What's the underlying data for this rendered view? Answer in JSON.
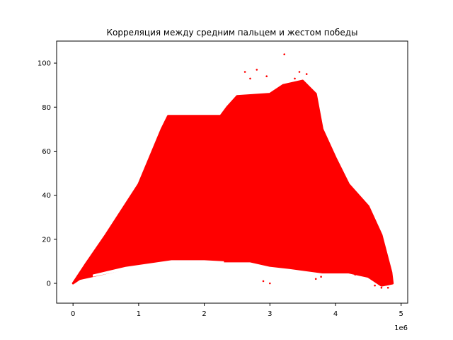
{
  "chart_data": {
    "type": "scatter",
    "title": "Корреляция между средним пальцем и жестом победы",
    "xlabel": "",
    "ylabel": "",
    "x_offset_label": "1e6",
    "xlim": [
      -250000,
      5100000
    ],
    "ylim": [
      -9,
      110
    ],
    "x_ticks": [
      0,
      1000000,
      2000000,
      3000000,
      4000000,
      5000000
    ],
    "x_tick_labels": [
      "0",
      "1",
      "2",
      "3",
      "4",
      "5"
    ],
    "y_ticks": [
      0,
      20,
      40,
      60,
      80,
      100
    ],
    "y_tick_labels": [
      "0",
      "20",
      "40",
      "60",
      "80",
      "100"
    ],
    "marker_color": "#ff0000",
    "grid": false,
    "legend": "none",
    "series": [
      {
        "main_region_upper": [
          [
            0,
            0
          ],
          [
            200000,
            9
          ],
          [
            500000,
            22
          ],
          [
            1000000,
            45
          ],
          [
            1350000,
            70
          ],
          [
            1450000,
            76
          ],
          [
            2250000,
            76
          ],
          [
            2350000,
            80
          ],
          [
            2500000,
            85
          ],
          [
            3000000,
            86
          ],
          [
            3200000,
            90
          ],
          [
            3500000,
            92
          ],
          [
            3700000,
            86
          ],
          [
            3800000,
            70
          ],
          [
            4000000,
            57
          ],
          [
            4200000,
            45
          ],
          [
            4500000,
            35
          ],
          [
            4700000,
            22
          ],
          [
            4850000,
            5
          ],
          [
            4870000,
            0
          ]
        ],
        "main_region_lower": [
          [
            4870000,
            0
          ],
          [
            4700000,
            -1
          ],
          [
            4500000,
            3
          ],
          [
            4200000,
            5
          ],
          [
            3800000,
            5
          ],
          [
            3300000,
            7
          ],
          [
            3000000,
            8
          ],
          [
            2700000,
            10
          ],
          [
            2300000,
            10
          ],
          [
            1500000,
            10
          ],
          [
            1000000,
            8
          ],
          [
            700000,
            6
          ],
          [
            400000,
            4
          ],
          [
            100000,
            2
          ],
          [
            0,
            0
          ]
        ],
        "lower_band_upper": [
          [
            200000,
            2
          ],
          [
            800000,
            6
          ],
          [
            1500000,
            8
          ],
          [
            2000000,
            8
          ],
          [
            2350000,
            8
          ],
          [
            2800000,
            7
          ]
        ],
        "lower_band_lower": [
          [
            2800000,
            6
          ],
          [
            2350000,
            6
          ],
          [
            2000000,
            6
          ],
          [
            1500000,
            5
          ],
          [
            800000,
            3
          ],
          [
            200000,
            0
          ]
        ],
        "outliers": [
          [
            3220000,
            104
          ],
          [
            2800000,
            97
          ],
          [
            2620000,
            96
          ],
          [
            3450000,
            96
          ],
          [
            2950000,
            94
          ],
          [
            3560000,
            95
          ],
          [
            3380000,
            93
          ],
          [
            2700000,
            93
          ],
          [
            3780000,
            3
          ],
          [
            3700000,
            2
          ],
          [
            3000000,
            0
          ],
          [
            2900000,
            1
          ],
          [
            4600000,
            -1
          ],
          [
            4700000,
            -2
          ],
          [
            4800000,
            -2
          ],
          [
            4850000,
            2
          ],
          [
            3600000,
            6
          ],
          [
            4300000,
            4
          ]
        ]
      }
    ]
  }
}
